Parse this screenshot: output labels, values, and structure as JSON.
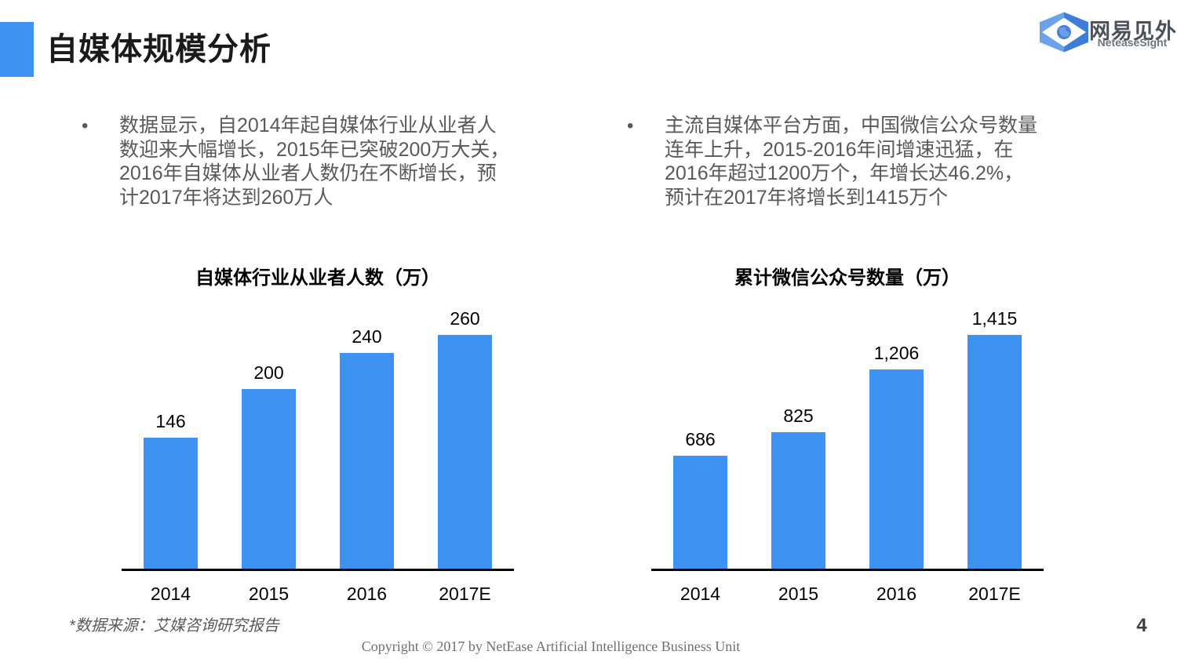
{
  "page": {
    "title": "自媒体规模分析",
    "page_number": "4"
  },
  "logo": {
    "name": "网易见外",
    "subtitle": "NeteaseSight"
  },
  "bullets": {
    "left": {
      "marker": "•",
      "lines": [
        "数据显示，自2014年起自媒体行业从业者人",
        "数迎来大幅增长，2015年已突破200万大关，",
        "2016年自媒体从业者人数仍在不断增长，预",
        "计2017年将达到260万人"
      ]
    },
    "right": {
      "marker": "•",
      "lines": [
        "主流自媒体平台方面，中国微信公众号数量",
        "连年上升，2015-2016年间增速迅猛，在",
        "2016年超过1200万个，年增长达46.2%，",
        "预计在2017年将增长到1415万个"
      ]
    }
  },
  "chart_data": [
    {
      "type": "bar",
      "title": "自媒体行业从业者人数（万）",
      "categories": [
        "2014",
        "2015",
        "2016",
        "2017E"
      ],
      "values": [
        146,
        200,
        240,
        260
      ],
      "value_labels": [
        "146",
        "200",
        "240",
        "260"
      ],
      "xlabel": "",
      "ylabel": "",
      "ylim": [
        0,
        260
      ],
      "grid": false,
      "legend": false,
      "bar_color": "#3E92F1",
      "axis_color": "#000000"
    },
    {
      "type": "bar",
      "title": "累计微信公众号数量（万）",
      "categories": [
        "2014",
        "2015",
        "2016",
        "2017E"
      ],
      "values": [
        686,
        825,
        1206,
        1415
      ],
      "value_labels": [
        "686",
        "825",
        "1,206",
        "1,415"
      ],
      "xlabel": "",
      "ylabel": "",
      "ylim": [
        0,
        1415
      ],
      "grid": false,
      "legend": false,
      "bar_color": "#3E92F1",
      "axis_color": "#000000"
    }
  ],
  "footer": {
    "source_note": "*数据来源：艾媒咨询研究报告",
    "copyright": "Copyright © 2017 by NetEase Artificial Intelligence Business Unit"
  },
  "colors": {
    "accent": "#3E92F1",
    "body_text": "#595959",
    "heading_text": "#1A1A1A"
  }
}
